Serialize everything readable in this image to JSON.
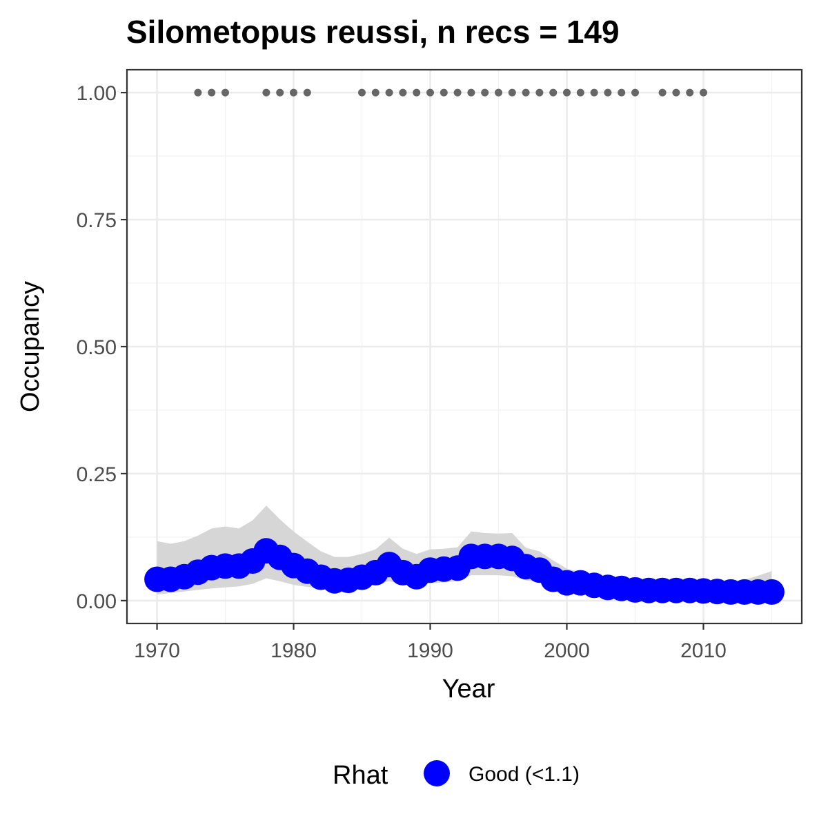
{
  "chart_data": {
    "type": "line",
    "title": "Silometopus reussi, n recs = 149",
    "xlabel": "Year",
    "ylabel": "Occupancy",
    "xlim": [
      1967.8,
      2017.2
    ],
    "ylim": [
      -0.045,
      1.045
    ],
    "x_ticks": [
      1970,
      1980,
      1990,
      2000,
      2010
    ],
    "x_tick_labels": [
      "1970",
      "1980",
      "1990",
      "2000",
      "2010"
    ],
    "y_ticks": [
      0,
      0.25,
      0.5,
      0.75,
      1.0
    ],
    "y_tick_labels": [
      "0.00",
      "0.25",
      "0.50",
      "0.75",
      "1.00"
    ],
    "grid": true,
    "legend": {
      "title": "Rhat",
      "position": "bottom",
      "entries": [
        {
          "label": "Good (<1.1)",
          "color": "#0000ff"
        }
      ]
    },
    "series": [
      {
        "name": "Occupancy",
        "color": "#0000ff",
        "x": [
          1970,
          1971,
          1972,
          1973,
          1974,
          1975,
          1976,
          1977,
          1978,
          1979,
          1980,
          1981,
          1982,
          1983,
          1984,
          1985,
          1986,
          1987,
          1988,
          1989,
          1990,
          1991,
          1992,
          1993,
          1994,
          1995,
          1996,
          1997,
          1998,
          1999,
          2000,
          2001,
          2002,
          2003,
          2004,
          2005,
          2006,
          2007,
          2008,
          2009,
          2010,
          2011,
          2012,
          2013,
          2014,
          2015
        ],
        "y": [
          0.042,
          0.042,
          0.047,
          0.056,
          0.065,
          0.068,
          0.068,
          0.078,
          0.098,
          0.085,
          0.069,
          0.058,
          0.046,
          0.039,
          0.04,
          0.046,
          0.055,
          0.071,
          0.055,
          0.047,
          0.06,
          0.062,
          0.064,
          0.087,
          0.087,
          0.087,
          0.083,
          0.067,
          0.06,
          0.042,
          0.035,
          0.035,
          0.03,
          0.026,
          0.024,
          0.021,
          0.02,
          0.02,
          0.02,
          0.02,
          0.019,
          0.018,
          0.017,
          0.017,
          0.017,
          0.017
        ]
      }
    ],
    "ribbon": {
      "name": "Credible interval",
      "color": "#d6d6d6",
      "x": [
        1970,
        1971,
        1972,
        1973,
        1974,
        1975,
        1976,
        1977,
        1978,
        1979,
        1980,
        1981,
        1982,
        1983,
        1984,
        1985,
        1986,
        1987,
        1988,
        1989,
        1990,
        1991,
        1992,
        1993,
        1994,
        1995,
        1996,
        1997,
        1998,
        1999,
        2000,
        2001,
        2002,
        2003,
        2004,
        2005,
        2006,
        2007,
        2008,
        2009,
        2010,
        2011,
        2012,
        2013,
        2014,
        2015
      ],
      "lower": [
        0.012,
        0.015,
        0.018,
        0.021,
        0.024,
        0.026,
        0.028,
        0.033,
        0.044,
        0.038,
        0.031,
        0.027,
        0.024,
        0.023,
        0.025,
        0.028,
        0.032,
        0.038,
        0.032,
        0.027,
        0.034,
        0.036,
        0.038,
        0.05,
        0.05,
        0.05,
        0.048,
        0.04,
        0.036,
        0.026,
        0.02,
        0.018,
        0.015,
        0.012,
        0.01,
        0.008,
        0.007,
        0.006,
        0.005,
        0.004,
        0.004,
        0.003,
        0.003,
        0.003,
        0.003,
        0.003
      ],
      "upper": [
        0.117,
        0.112,
        0.117,
        0.128,
        0.142,
        0.146,
        0.142,
        0.158,
        0.187,
        0.16,
        0.136,
        0.116,
        0.097,
        0.086,
        0.086,
        0.092,
        0.101,
        0.124,
        0.102,
        0.092,
        0.101,
        0.102,
        0.105,
        0.136,
        0.133,
        0.132,
        0.133,
        0.104,
        0.097,
        0.079,
        0.063,
        0.056,
        0.052,
        0.046,
        0.044,
        0.04,
        0.036,
        0.035,
        0.035,
        0.035,
        0.035,
        0.036,
        0.037,
        0.041,
        0.049,
        0.058
      ]
    },
    "records": {
      "name": "Years with records",
      "color": "#666666",
      "y": 1.0,
      "x": [
        1973,
        1974,
        1975,
        1978,
        1979,
        1980,
        1981,
        1985,
        1986,
        1987,
        1988,
        1989,
        1990,
        1991,
        1992,
        1993,
        1994,
        1995,
        1996,
        1997,
        1998,
        1999,
        2000,
        2001,
        2002,
        2003,
        2004,
        2005,
        2007,
        2008,
        2009,
        2010
      ]
    }
  }
}
